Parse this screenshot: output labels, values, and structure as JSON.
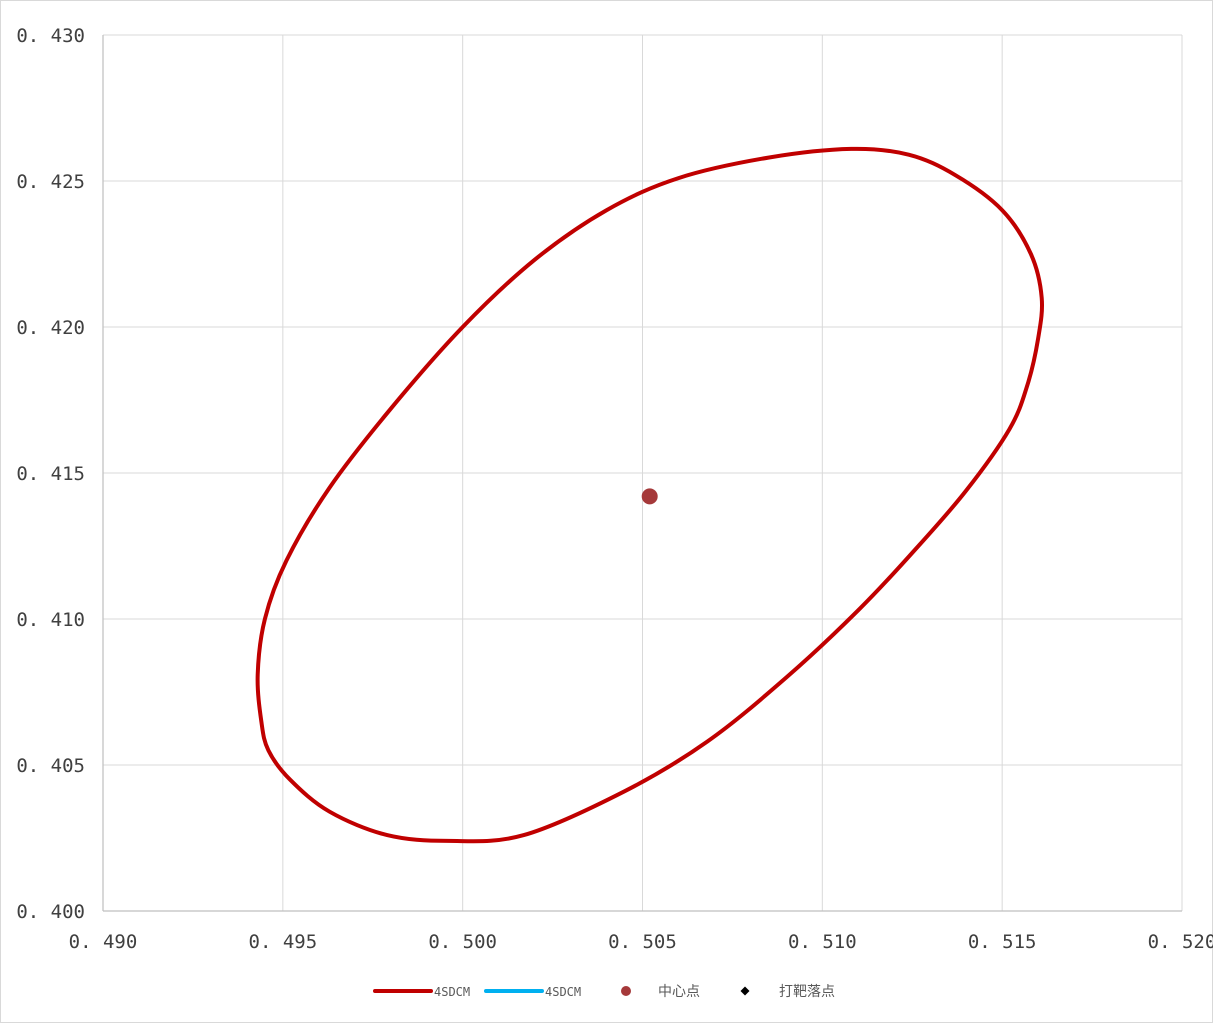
{
  "chart_data": {
    "type": "scatter",
    "title": "",
    "xlabel": "",
    "ylabel": "",
    "xlim": [
      0.49,
      0.52
    ],
    "ylim": [
      0.4,
      0.43
    ],
    "grid": true,
    "legend_position": "bottom",
    "x_ticks": [
      "0. 490",
      "0. 495",
      "0. 500",
      "0. 505",
      "0. 510",
      "0. 515",
      "0. 520"
    ],
    "y_ticks": [
      "0. 400",
      "0. 405",
      "0. 410",
      "0. 415",
      "0. 420",
      "0. 425",
      "0. 430"
    ],
    "x_tick_values": [
      0.49,
      0.495,
      0.5,
      0.505,
      0.51,
      0.515,
      0.52
    ],
    "y_tick_values": [
      0.4,
      0.405,
      0.41,
      0.415,
      0.42,
      0.425,
      0.43
    ],
    "series": [
      {
        "name": "4SDCM",
        "kind": "line",
        "color": "#C00000",
        "points": [
          [
            0.5108,
            0.4261
          ],
          [
            0.5124,
            0.4259
          ],
          [
            0.5137,
            0.4252
          ],
          [
            0.515,
            0.424
          ],
          [
            0.5158,
            0.4225
          ],
          [
            0.5161,
            0.421
          ],
          [
            0.516,
            0.4196
          ],
          [
            0.5157,
            0.418
          ],
          [
            0.5152,
            0.4165
          ],
          [
            0.514,
            0.4144
          ],
          [
            0.5126,
            0.4124
          ],
          [
            0.511,
            0.4103
          ],
          [
            0.509,
            0.408
          ],
          [
            0.5068,
            0.4058
          ],
          [
            0.5045,
            0.4041
          ],
          [
            0.5017,
            0.4026
          ],
          [
            0.4996,
            0.4024
          ],
          [
            0.4979,
            0.4026
          ],
          [
            0.4963,
            0.4034
          ],
          [
            0.4952,
            0.4045
          ],
          [
            0.4946,
            0.4055
          ],
          [
            0.4944,
            0.4065
          ],
          [
            0.4943,
            0.4081
          ],
          [
            0.4945,
            0.41
          ],
          [
            0.4951,
            0.412
          ],
          [
            0.4963,
            0.4145
          ],
          [
            0.498,
            0.4172
          ],
          [
            0.5,
            0.42
          ],
          [
            0.502,
            0.4223
          ],
          [
            0.504,
            0.424
          ],
          [
            0.506,
            0.4251
          ],
          [
            0.5085,
            0.4258
          ],
          [
            0.5108,
            0.4261
          ]
        ]
      },
      {
        "name": "4SDCM",
        "kind": "line",
        "color": "#00B0F0",
        "points": []
      },
      {
        "name": "中心点",
        "kind": "marker",
        "color": "#A5393A",
        "points": [
          [
            0.5052,
            0.4142
          ]
        ]
      },
      {
        "name": "打靶落点",
        "kind": "marker",
        "color": "#000000",
        "points": []
      }
    ]
  },
  "legend": {
    "items": [
      {
        "label": "4SDCM",
        "color": "#C00000",
        "symbol": "line"
      },
      {
        "label": "4SDCM",
        "color": "#00B0F0",
        "symbol": "line"
      },
      {
        "label": "中心点",
        "color": "#A5393A",
        "symbol": "circle"
      },
      {
        "label": "打靶落点",
        "color": "#000000",
        "symbol": "diamond"
      }
    ]
  },
  "colors": {
    "grid": "#D9D9D9",
    "axis": "#BFBFBF",
    "text": "#404040"
  }
}
